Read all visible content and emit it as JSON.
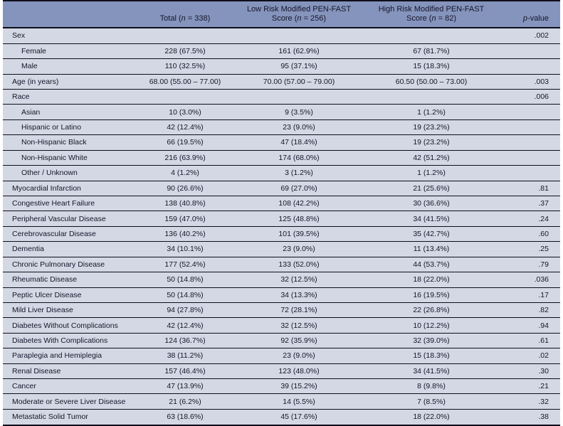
{
  "colors": {
    "header_bg": "#8594bc",
    "row_bg": "#d4d8e4",
    "border": "#0e0e1c",
    "text": "#15152a",
    "page_bg": "#ffffff"
  },
  "table": {
    "header": {
      "label_col": "",
      "total_col": {
        "line1": "",
        "pre": "Total (",
        "n_italic": "n",
        "post": " = 338)"
      },
      "low_risk_col": {
        "line1": "Low Risk Modified PEN-FAST",
        "pre": "Score (",
        "n_italic": "n",
        "post": " = 256)"
      },
      "high_risk_col": {
        "line1": "High Risk Modified PEN-FAST",
        "pre": "Score (",
        "n_italic": "n",
        "post": " = 82)"
      },
      "p_col": {
        "p_italic": "p",
        "suffix": "-value"
      }
    },
    "rows": [
      {
        "label": "Sex",
        "indent": false,
        "total": "",
        "low": "",
        "high": "",
        "p": ".002"
      },
      {
        "label": "Female",
        "indent": true,
        "total": "228 (67.5%)",
        "low": "161 (62.9%)",
        "high": "67 (81.7%)",
        "p": ""
      },
      {
        "label": "Male",
        "indent": true,
        "total": "110 (32.5%)",
        "low": "95 (37.1%)",
        "high": "15 (18.3%)",
        "p": ""
      },
      {
        "label": "Age (in years)",
        "indent": false,
        "total": "68.00 (55.00 – 77.00)",
        "low": "70.00 (57.00 – 79.00)",
        "high": "60.50 (50.00 – 73.00)",
        "p": ".003"
      },
      {
        "label": "Race",
        "indent": false,
        "total": "",
        "low": "",
        "high": "",
        "p": ".006"
      },
      {
        "label": "Asian",
        "indent": true,
        "total": "10 (3.0%)",
        "low": "9 (3.5%)",
        "high": "1 (1.2%)",
        "p": ""
      },
      {
        "label": "Hispanic or Latino",
        "indent": true,
        "total": "42 (12.4%)",
        "low": "23 (9.0%)",
        "high": "19 (23.2%)",
        "p": ""
      },
      {
        "label": "Non-Hispanic Black",
        "indent": true,
        "total": "66 (19.5%)",
        "low": "47 (18.4%)",
        "high": "19 (23.2%)",
        "p": ""
      },
      {
        "label": "Non-Hispanic White",
        "indent": true,
        "total": "216 (63.9%)",
        "low": "174 (68.0%)",
        "high": "42 (51.2%)",
        "p": ""
      },
      {
        "label": "Other / Unknown",
        "indent": true,
        "total": "4 (1.2%)",
        "low": "3 (1.2%)",
        "high": "1 (1.2%)",
        "p": ""
      },
      {
        "label": "Myocardial Infarction",
        "indent": false,
        "total": "90 (26.6%)",
        "low": "69 (27.0%)",
        "high": "21 (25.6%)",
        "p": ".81"
      },
      {
        "label": "Congestive Heart Failure",
        "indent": false,
        "total": "138 (40.8%)",
        "low": "108 (42.2%)",
        "high": "30 (36.6%)",
        "p": ".37"
      },
      {
        "label": "Peripheral Vascular Disease",
        "indent": false,
        "total": "159 (47.0%)",
        "low": "125 (48.8%)",
        "high": "34 (41.5%)",
        "p": ".24"
      },
      {
        "label": "Cerebrovascular Disease",
        "indent": false,
        "total": "136 (40.2%)",
        "low": "101 (39.5%)",
        "high": "35 (42.7%)",
        "p": ".60"
      },
      {
        "label": "Dementia",
        "indent": false,
        "total": "34 (10.1%)",
        "low": "23 (9.0%)",
        "high": "11 (13.4%)",
        "p": ".25"
      },
      {
        "label": "Chronic Pulmonary Disease",
        "indent": false,
        "total": "177 (52.4%)",
        "low": "133 (52.0%)",
        "high": "44 (53.7%)",
        "p": ".79"
      },
      {
        "label": "Rheumatic Disease",
        "indent": false,
        "total": "50 (14.8%)",
        "low": "32 (12.5%)",
        "high": "18 (22.0%)",
        "p": ".036"
      },
      {
        "label": "Peptic Ulcer Disease",
        "indent": false,
        "total": "50 (14.8%)",
        "low": "34 (13.3%)",
        "high": "16 (19.5%)",
        "p": ".17"
      },
      {
        "label": "Mild Liver Disease",
        "indent": false,
        "total": "94 (27.8%)",
        "low": "72 (28.1%)",
        "high": "22 (26.8%)",
        "p": ".82"
      },
      {
        "label": "Diabetes Without Complications",
        "indent": false,
        "total": "42 (12.4%)",
        "low": "32 (12.5%)",
        "high": "10 (12.2%)",
        "p": ".94"
      },
      {
        "label": "Diabetes With Complications",
        "indent": false,
        "total": "124 (36.7%)",
        "low": "92 (35.9%)",
        "high": "32 (39.0%)",
        "p": ".61"
      },
      {
        "label": "Paraplegia and Hemiplegia",
        "indent": false,
        "total": "38 (11.2%)",
        "low": "23 (9.0%)",
        "high": "15 (18.3%)",
        "p": ".02"
      },
      {
        "label": "Renal Disease",
        "indent": false,
        "total": "157 (46.4%)",
        "low": "123 (48.0%)",
        "high": "34 (41.5%)",
        "p": ".30"
      },
      {
        "label": "Cancer",
        "indent": false,
        "total": "47 (13.9%)",
        "low": "39 (15.2%)",
        "high": "8 (9.8%)",
        "p": ".21"
      },
      {
        "label": "Moderate or Severe Liver Disease",
        "indent": false,
        "total": "21 (6.2%)",
        "low": "14 (5.5%)",
        "high": "7 (8.5%)",
        "p": ".32"
      },
      {
        "label": "Metastatic Solid Tumor",
        "indent": false,
        "total": "63 (18.6%)",
        "low": "45 (17.6%)",
        "high": "18 (22.0%)",
        "p": ".38"
      }
    ]
  }
}
